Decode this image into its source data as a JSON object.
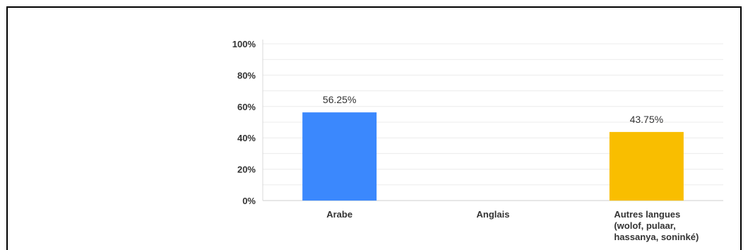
{
  "chart_data": {
    "type": "bar",
    "categories": [
      "Arabe",
      "Anglais",
      "Autres langues (wolof, pulaar, hassanya, soninké)"
    ],
    "category_lines": [
      [
        "Arabe"
      ],
      [
        "Anglais"
      ],
      [
        "Autres langues",
        "(wolof, pulaar,",
        "hassanya, soninké)"
      ]
    ],
    "values": [
      56.25,
      0,
      43.75
    ],
    "data_labels": [
      "56.25%",
      "",
      "43.75%"
    ],
    "colors": [
      "#3b88fd",
      "#3b88fd",
      "#f9be00"
    ],
    "yticks": [
      "0%",
      "20%",
      "40%",
      "60%",
      "80%",
      "100%"
    ],
    "ylim": [
      0,
      100
    ],
    "grid": true
  }
}
